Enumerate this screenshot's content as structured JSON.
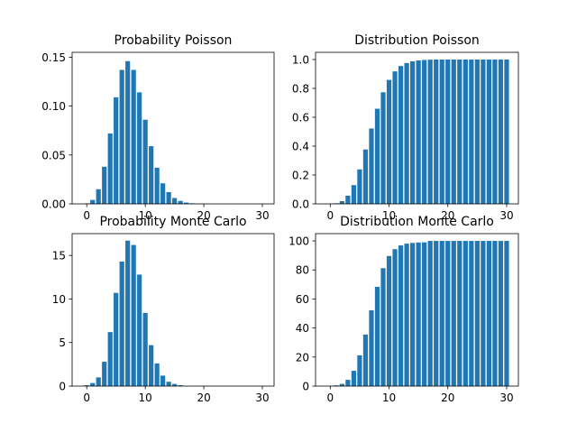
{
  "figure": {
    "background": "#ffffff",
    "bar_color": "#1f77b4"
  },
  "chart_data": [
    {
      "type": "bar",
      "title": "Probability Poisson",
      "x": [
        0,
        1,
        2,
        3,
        4,
        5,
        6,
        7,
        8,
        9,
        10,
        11,
        12,
        13,
        14,
        15,
        16,
        17,
        18,
        19,
        20,
        21,
        22,
        23,
        24,
        25,
        26,
        27,
        28,
        29,
        30
      ],
      "values": [
        0.0005,
        0.004,
        0.015,
        0.038,
        0.072,
        0.109,
        0.137,
        0.146,
        0.137,
        0.114,
        0.086,
        0.059,
        0.037,
        0.021,
        0.012,
        0.006,
        0.003,
        0.0013,
        0.0006,
        0.0002,
        0.0001,
        0,
        0,
        0,
        0,
        0,
        0,
        0,
        0,
        0,
        0
      ],
      "xlim": [
        -2.5,
        32.0
      ],
      "ylim": [
        0,
        0.155
      ],
      "xticks": [
        0,
        10,
        20,
        30
      ],
      "xtick_labels": [
        "0",
        "10",
        "20",
        "30"
      ],
      "yticks": [
        0,
        0.05,
        0.1,
        0.15
      ],
      "ytick_labels": [
        "0.00",
        "0.05",
        "0.10",
        "0.15"
      ],
      "grid": false
    },
    {
      "type": "bar",
      "title": "Distribution Poisson",
      "x": [
        0,
        1,
        2,
        3,
        4,
        5,
        6,
        7,
        8,
        9,
        10,
        11,
        12,
        13,
        14,
        15,
        16,
        17,
        18,
        19,
        20,
        21,
        22,
        23,
        24,
        25,
        26,
        27,
        28,
        29,
        30
      ],
      "values": [
        0.0005,
        0.004,
        0.019,
        0.057,
        0.13,
        0.239,
        0.377,
        0.522,
        0.659,
        0.773,
        0.859,
        0.918,
        0.955,
        0.976,
        0.988,
        0.994,
        0.997,
        0.999,
        1.0,
        1.0,
        1.0,
        1.0,
        1.0,
        1.0,
        1.0,
        1.0,
        1.0,
        1.0,
        1.0,
        1.0,
        1.0
      ],
      "xlim": [
        -2.5,
        32.0
      ],
      "ylim": [
        0,
        1.05
      ],
      "xticks": [
        0,
        10,
        20,
        30
      ],
      "xtick_labels": [
        "0",
        "10",
        "20",
        "30"
      ],
      "yticks": [
        0,
        0.2,
        0.4,
        0.6,
        0.8,
        1.0
      ],
      "ytick_labels": [
        "0.0",
        "0.2",
        "0.4",
        "0.6",
        "0.8",
        "1.0"
      ],
      "grid": false
    },
    {
      "type": "bar",
      "title": "Probability Monte Carlo",
      "x": [
        0,
        1,
        2,
        3,
        4,
        5,
        6,
        7,
        8,
        9,
        10,
        11,
        12,
        13,
        14,
        15,
        16,
        17,
        18,
        19,
        20,
        21,
        22,
        23,
        24,
        25,
        26,
        27,
        28,
        29,
        30
      ],
      "values": [
        0.1,
        0.35,
        1.0,
        2.8,
        6.2,
        10.7,
        14.3,
        16.7,
        16.2,
        12.8,
        8.4,
        4.7,
        2.6,
        1.2,
        0.5,
        0.25,
        0.1,
        0,
        0,
        0,
        0,
        0,
        0,
        0,
        0,
        0,
        0,
        0,
        0,
        0,
        0
      ],
      "xlim": [
        -2.5,
        32.0
      ],
      "ylim": [
        0,
        17.5
      ],
      "xticks": [
        0,
        10,
        20,
        30
      ],
      "xtick_labels": [
        "0",
        "10",
        "20",
        "30"
      ],
      "yticks": [
        0,
        5,
        10,
        15
      ],
      "ytick_labels": [
        "0",
        "5",
        "10",
        "15"
      ],
      "grid": false
    },
    {
      "type": "bar",
      "title": "Distribution Monte Carlo",
      "x": [
        0,
        1,
        2,
        3,
        4,
        5,
        6,
        7,
        8,
        9,
        10,
        11,
        12,
        13,
        14,
        15,
        16,
        17,
        18,
        19,
        20,
        21,
        22,
        23,
        24,
        25,
        26,
        27,
        28,
        29,
        30
      ],
      "values": [
        0.1,
        0.5,
        1.5,
        4.3,
        10.5,
        21.2,
        35.5,
        52.2,
        68.4,
        81.2,
        89.6,
        94.3,
        96.9,
        98.1,
        98.6,
        98.9,
        99.0,
        100,
        100,
        100,
        100,
        100,
        100,
        100,
        100,
        100,
        100,
        100,
        100,
        100,
        100
      ],
      "xlim": [
        -2.5,
        32.0
      ],
      "ylim": [
        0,
        105
      ],
      "xticks": [
        0,
        10,
        20,
        30
      ],
      "xtick_labels": [
        "0",
        "10",
        "20",
        "30"
      ],
      "yticks": [
        0,
        20,
        40,
        60,
        80,
        100
      ],
      "ytick_labels": [
        "0",
        "20",
        "40",
        "60",
        "80",
        "100"
      ],
      "grid": false
    }
  ]
}
